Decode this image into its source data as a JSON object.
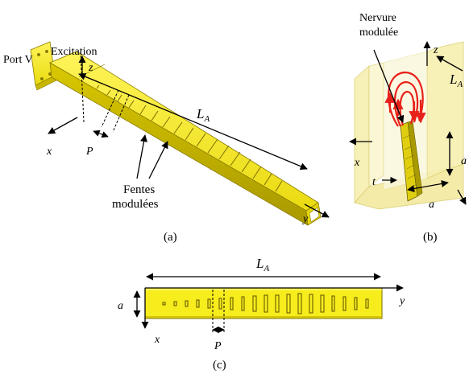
{
  "panel_a": {
    "port": "Port V",
    "excitation": "Excitation",
    "z": "z",
    "x": "x",
    "y": "y",
    "P": "P",
    "LA_main": "L",
    "LA_sub": "A",
    "slots_line1": "Fentes",
    "slots_line2": "modulées",
    "caption": "(a)"
  },
  "panel_b": {
    "rib_line1": "Nervure",
    "rib_line2": "modulée",
    "z": "z",
    "x": "x",
    "t": "t",
    "a_bottom": "a",
    "a_side": "a",
    "LA_main": "L",
    "LA_sub": "A",
    "caption": "(b)"
  },
  "panel_c": {
    "LA_main": "L",
    "LA_sub": "A",
    "a": "a",
    "x": "x",
    "y": "y",
    "P": "P",
    "caption": "(c)"
  },
  "colors": {
    "waveguide_yellow": "#f2e61a",
    "waveguide_shadow": "#b9a800",
    "field_red": "#e8201a",
    "transparent_yellow": "#f7efb0"
  }
}
